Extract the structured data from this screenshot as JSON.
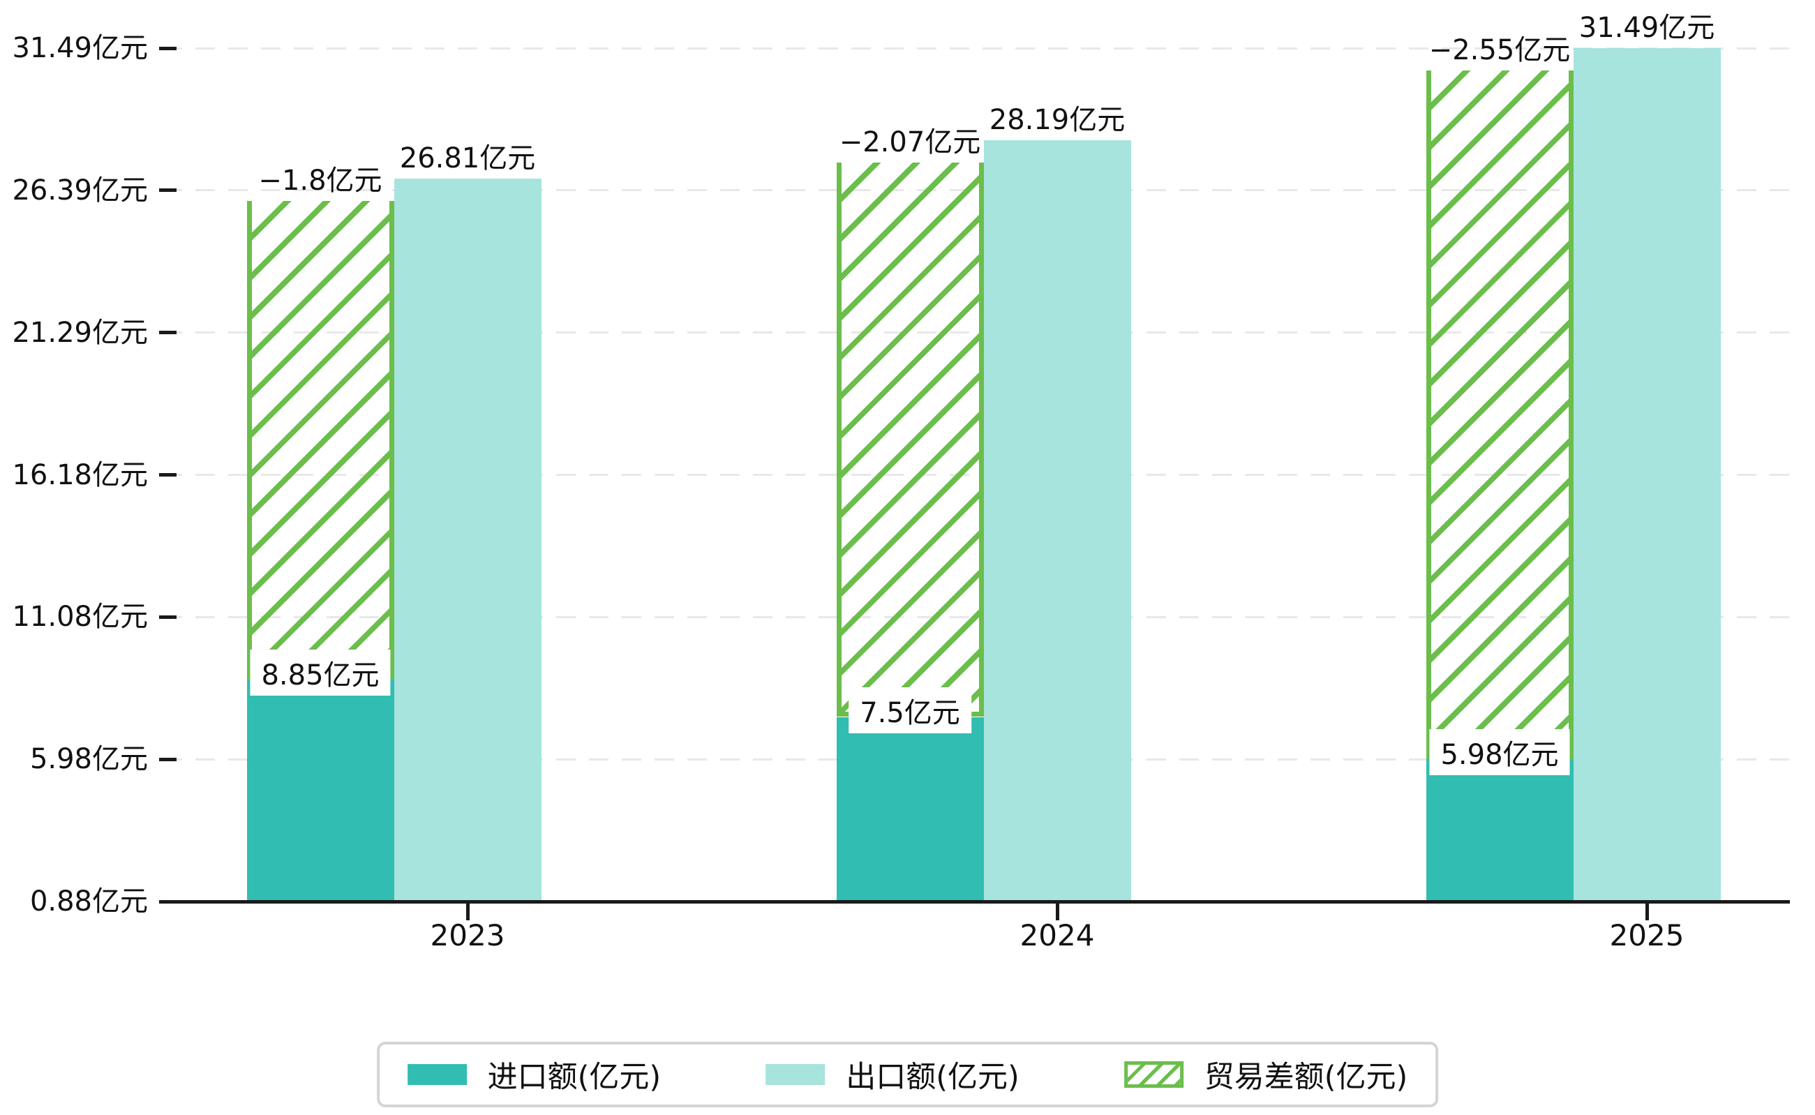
{
  "chart_data": {
    "type": "bar",
    "title": "",
    "categories": [
      "2023",
      "2024",
      "2025"
    ],
    "series": [
      {
        "name": "进口额(亿元)",
        "values": [
          8.85,
          7.5,
          5.98
        ],
        "labels": [
          "8.85亿元",
          "7.5亿元",
          "5.98亿元"
        ],
        "color": "#31bdb1",
        "style": "solid"
      },
      {
        "name": "出口额(亿元)",
        "values": [
          26.81,
          28.19,
          31.49
        ],
        "labels": [
          "26.81亿元",
          "28.19亿元",
          "31.49亿元"
        ],
        "color": "#a6e4dd",
        "style": "solid"
      },
      {
        "name": "贸易差额(亿元)",
        "values": [
          -1.8,
          -2.07,
          -2.55
        ],
        "labels": [
          "−1.8亿元",
          "−2.07亿元",
          "−2.55亿元"
        ],
        "color": "#6bbe4b",
        "style": "hatched"
      }
    ],
    "y_axis": {
      "min": 0.88,
      "max": 31.49,
      "tick_values": [
        0.88,
        5.98,
        11.08,
        16.18,
        21.29,
        26.39,
        31.49
      ],
      "tick_labels": [
        "0.88亿元",
        "5.98亿元",
        "11.08亿元",
        "16.18亿元",
        "21.29亿元",
        "26.39亿元",
        "31.49亿元"
      ]
    },
    "x_axis": {
      "tick_labels": [
        "2023",
        "2024",
        "2025"
      ]
    },
    "grid": true,
    "legend_position": "bottom",
    "colors": {
      "grid": "#e8e8e8",
      "axis": "#1a1a1a",
      "text": "#111111",
      "label_bg": "#ffffff",
      "legend_border": "#d4d4d4"
    }
  }
}
